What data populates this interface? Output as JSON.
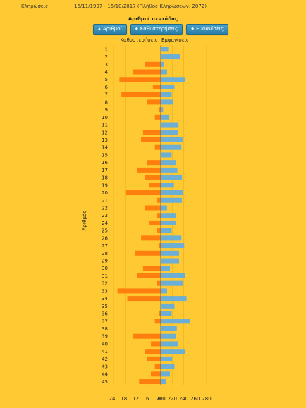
{
  "header": {
    "draws_label": "Κληρώσεις:",
    "draws_value": "16/11/1997 - 15/10/2017 (Πλήθος Κληρώσεων: 2072)"
  },
  "colors": {
    "background": "#ffc933",
    "delays_bar": "#ff7f0e",
    "appearances_bar": "#6baed6",
    "button": "#2b7ea6"
  },
  "chart_data": {
    "type": "bar",
    "orientation": "horizontal",
    "title": "Αριθμοί πεντάδας",
    "ylabel": "Αριθμός",
    "left_series_label": "Καθυστερήσεις",
    "right_series_label": "Εμφανίσεις",
    "categories": [
      "1",
      "2",
      "3",
      "4",
      "5",
      "6",
      "7",
      "8",
      "9",
      "10",
      "11",
      "12",
      "13",
      "14",
      "15",
      "16",
      "17",
      "18",
      "19",
      "20",
      "21",
      "22",
      "23",
      "24",
      "25",
      "26",
      "27",
      "28",
      "29",
      "30",
      "31",
      "32",
      "33",
      "34",
      "35",
      "36",
      "37",
      "38",
      "39",
      "40",
      "41",
      "42",
      "43",
      "44",
      "45"
    ],
    "series": [
      {
        "name": "Καθυστερήσεις",
        "values": [
          0,
          0,
          8,
          14,
          21,
          4,
          20,
          7,
          1,
          3,
          0,
          9,
          10,
          3,
          0,
          7,
          12,
          8,
          6,
          18,
          2,
          8,
          2,
          6,
          2,
          10,
          1,
          13,
          0,
          9,
          12,
          2,
          22,
          17,
          0,
          1,
          3,
          0,
          14,
          5,
          8,
          7,
          3,
          5,
          11
        ]
      },
      {
        "name": "Εμφανίσεις",
        "values": [
          213,
          234,
          206,
          211,
          243,
          224,
          219,
          222,
          204,
          215,
          231,
          230,
          238,
          236,
          219,
          226,
          229,
          237,
          223,
          239,
          237,
          211,
          227,
          226,
          219,
          236,
          241,
          232,
          232,
          216,
          242,
          239,
          211,
          245,
          224,
          219,
          251,
          228,
          226,
          230,
          243,
          220,
          224,
          216,
          209
        ]
      }
    ],
    "left_axis": {
      "ticks": [
        24,
        18,
        12,
        6,
        0
      ],
      "max": 24
    },
    "right_axis": {
      "ticks": [
        200,
        220,
        240,
        260,
        280
      ],
      "min": 200,
      "max": 280
    },
    "grid": true
  },
  "buttons": [
    {
      "label": "Αριθμοί",
      "icon": "sort-up-icon",
      "glyph": "▲"
    },
    {
      "label": "Καθυστερήσεις",
      "icon": "sort-both-icon",
      "glyph": "◆"
    },
    {
      "label": "Εμφανίσεις",
      "icon": "sort-both-icon",
      "glyph": "◆"
    }
  ]
}
